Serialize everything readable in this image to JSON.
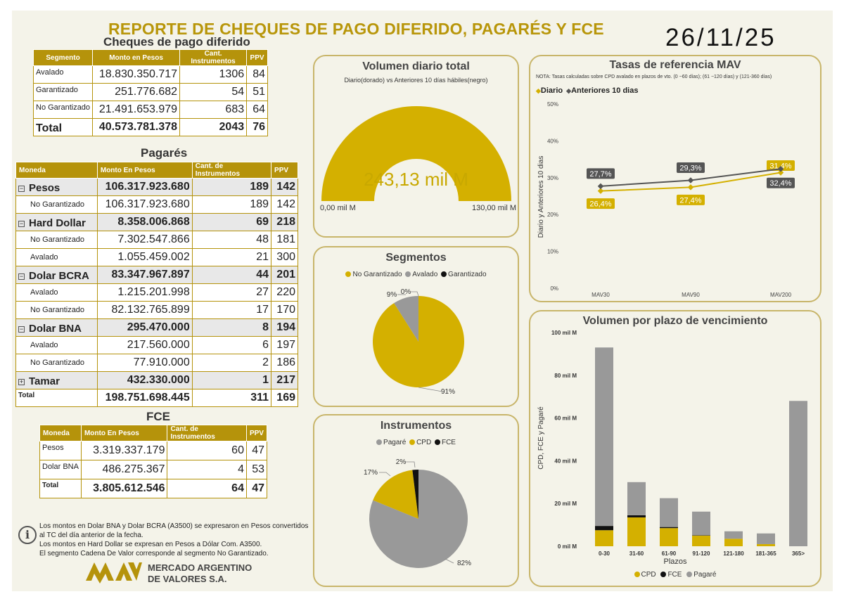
{
  "title": "REPORTE DE CHEQUES DE PAGO DIFERIDO, PAGARÉS Y FCE",
  "date": "26/11/25",
  "cheques": {
    "title": "Cheques de pago diferido",
    "headers": [
      "Segmento",
      "Monto en Pesos",
      "Cant. Instrumentos",
      "PPV"
    ],
    "rows": [
      {
        "label": "Avalado",
        "monto": "18.830.350.717",
        "cant": "1306",
        "ppv": "84"
      },
      {
        "label": "Garantizado",
        "monto": "251.776.682",
        "cant": "54",
        "ppv": "51"
      },
      {
        "label": "No Garantizado",
        "monto": "21.491.653.979",
        "cant": "683",
        "ppv": "64"
      }
    ],
    "total": {
      "label": "Total",
      "monto": "40.573.781.378",
      "cant": "2043",
      "ppv": "76"
    }
  },
  "pagares": {
    "title": "Pagarés",
    "headers": [
      "Moneda",
      "Monto En Pesos",
      "Cant. de Instrumentos",
      "PPV"
    ],
    "rows": [
      {
        "type": "grp",
        "expand": "−",
        "label": "Pesos",
        "monto": "106.317.923.680",
        "cant": "189",
        "ppv": "142"
      },
      {
        "type": "sub",
        "label": "No Garantizado",
        "monto": "106.317.923.680",
        "cant": "189",
        "ppv": "142"
      },
      {
        "type": "grp",
        "expand": "−",
        "label": "Hard Dollar",
        "monto": "8.358.006.868",
        "cant": "69",
        "ppv": "218"
      },
      {
        "type": "sub",
        "label": "No Garantizado",
        "monto": "7.302.547.866",
        "cant": "48",
        "ppv": "181"
      },
      {
        "type": "sub",
        "label": "Avalado",
        "monto": "1.055.459.002",
        "cant": "21",
        "ppv": "300"
      },
      {
        "type": "grp",
        "expand": "−",
        "label": "Dolar BCRA",
        "monto": "83.347.967.897",
        "cant": "44",
        "ppv": "201"
      },
      {
        "type": "sub",
        "label": "Avalado",
        "monto": "1.215.201.998",
        "cant": "27",
        "ppv": "220"
      },
      {
        "type": "sub",
        "label": "No Garantizado",
        "monto": "82.132.765.899",
        "cant": "17",
        "ppv": "170"
      },
      {
        "type": "grp",
        "expand": "−",
        "label": "Dolar BNA",
        "monto": "295.470.000",
        "cant": "8",
        "ppv": "194"
      },
      {
        "type": "sub",
        "label": "Avalado",
        "monto": "217.560.000",
        "cant": "6",
        "ppv": "197"
      },
      {
        "type": "sub",
        "label": "No Garantizado",
        "monto": "77.910.000",
        "cant": "2",
        "ppv": "186"
      },
      {
        "type": "grp",
        "expand": "+",
        "label": "Tamar",
        "monto": "432.330.000",
        "cant": "1",
        "ppv": "217"
      }
    ],
    "total": {
      "label": "Total",
      "monto": "198.751.698.445",
      "cant": "311",
      "ppv": "169"
    }
  },
  "fce": {
    "title": "FCE",
    "headers": [
      "Moneda",
      "Monto En Pesos",
      "Cant. de Instrumentos",
      "PPV"
    ],
    "rows": [
      {
        "label": "Pesos",
        "monto": "3.319.337.179",
        "cant": "60",
        "ppv": "47"
      },
      {
        "label": "Dolar BNA",
        "monto": "486.275.367",
        "cant": "4",
        "ppv": "53"
      }
    ],
    "total": {
      "label": "Total",
      "monto": "3.805.612.546",
      "cant": "64",
      "ppv": "47"
    }
  },
  "notes": [
    "Los montos en Dolar BNA y Dolar BCRA (A3500) se expresaron en Pesos convertidos al TC del día anterior de la fecha.",
    "Los montos en Hard Dollar se expresan en Pesos a Dólar Com. A3500.",
    "El segmento Cadena De Valor corresponde al segmento No Garantizado."
  ],
  "info_icon": "info-icon",
  "logo": {
    "line1": "MERCADO ARGENTINO",
    "line2": "DE VALORES S.A."
  },
  "colors": {
    "gold": "#d4b000",
    "gray": "#999999",
    "black": "#111111",
    "dark_gray": "#555555",
    "header": "#b5930b"
  },
  "gauge": {
    "title": "Volumen diario total",
    "subtitle": "Diario(dorado) vs Anteriores 10 días hábiles(negro)",
    "value_label": "243,13 mil M",
    "min_label": "0,00 mil M",
    "max_label": "130,00 mil M",
    "value": 243.13,
    "min": 0,
    "max": 130
  },
  "chart_data": [
    {
      "type": "pie",
      "title": "Segmentos",
      "legend_position": "top",
      "categories": [
        "No Garantizado",
        "Avalado",
        "Garantizado"
      ],
      "values": [
        91,
        9,
        0
      ],
      "labels": [
        "91%",
        "9%",
        "0%"
      ],
      "colors": [
        "#d4b000",
        "#999999",
        "#111111"
      ]
    },
    {
      "type": "pie",
      "title": "Instrumentos",
      "legend_position": "top",
      "categories": [
        "Pagaré",
        "CPD",
        "FCE"
      ],
      "values": [
        82,
        17,
        2
      ],
      "labels": [
        "82%",
        "17%",
        "2%"
      ],
      "colors": [
        "#999999",
        "#d4b000",
        "#111111"
      ]
    },
    {
      "type": "line",
      "title": "Tasas de referencia MAV",
      "note": "NOTA: Tasas calculadas sobre CPD avalado en plazos de vto. (0 −60 días); (61 −120 días) y (121-360 días)",
      "categories": [
        "MAV30",
        "MAV90",
        "MAV200"
      ],
      "series": [
        {
          "name": "Diario",
          "values": [
            26.4,
            27.4,
            31.4
          ],
          "labels": [
            "26,4%",
            "27,4%",
            "31,4%"
          ],
          "color": "#d4b000"
        },
        {
          "name": "Anteriores 10 dias",
          "values": [
            27.7,
            29.3,
            32.4
          ],
          "labels": [
            "27,7%",
            "29,3%",
            "32,4%"
          ],
          "color": "#555555"
        }
      ],
      "ylabel": "Diario y Anteriores 10 dias",
      "ylim": [
        0,
        50
      ],
      "yticks": [
        "0%",
        "10%",
        "20%",
        "30%",
        "40%",
        "50%"
      ],
      "legend_position": "top-left"
    },
    {
      "type": "bar",
      "stacked": true,
      "title": "Volumen por plazo de vencimiento",
      "categories": [
        "0-30",
        "31-60",
        "61-90",
        "91-120",
        "121-180",
        "181-365",
        "365>"
      ],
      "series": [
        {
          "name": "CPD",
          "values": [
            7.5,
            13.5,
            8.5,
            5,
            3.5,
            1,
            0
          ],
          "color": "#d4b000"
        },
        {
          "name": "FCE",
          "values": [
            2,
            1,
            0.5,
            0.2,
            0,
            0,
            0
          ],
          "color": "#111111"
        },
        {
          "name": "Pagaré",
          "values": [
            83.5,
            15.5,
            13.5,
            11,
            3.5,
            5,
            68
          ],
          "color": "#999999"
        }
      ],
      "xlabel": "Plazos",
      "ylabel": "CPD, FCE y Pagaré",
      "ylim": [
        0,
        100
      ],
      "yticks": [
        "0 mil M",
        "20 mil M",
        "40 mil M",
        "60 mil M",
        "80 mil M",
        "100 mil M"
      ],
      "legend_position": "bottom"
    }
  ]
}
